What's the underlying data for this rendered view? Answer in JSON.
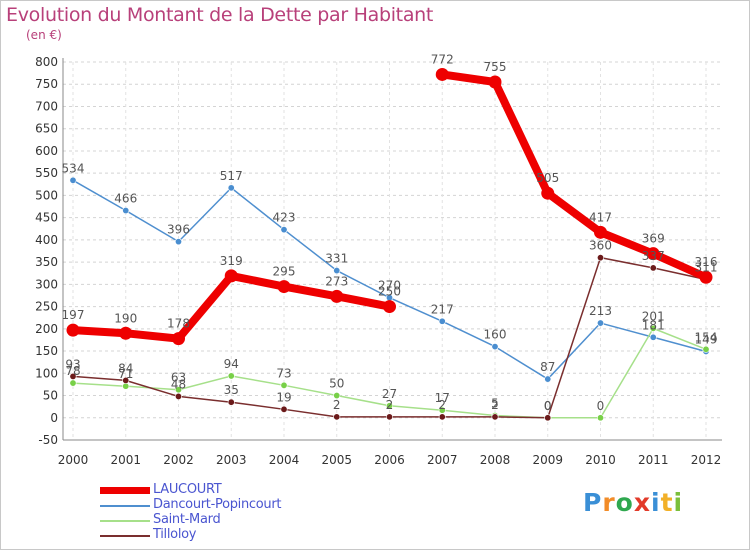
{
  "header": {
    "title": "Evolution du Montant de la Dette par Habitant",
    "subtitle": "(en €)"
  },
  "logo": {
    "text": "Proxiti",
    "letter_colors": [
      "#3a8fd6",
      "#f28c28",
      "#2fa84f",
      "#e23a2a",
      "#3a8fd6",
      "#f2b028",
      "#7bbf3a"
    ]
  },
  "chart_data": {
    "type": "line",
    "title": "Evolution du Montant de la Dette par Habitant",
    "xlabel": "",
    "ylabel": "(en €)",
    "x": [
      "2000",
      "2001",
      "2002",
      "2003",
      "2004",
      "2005",
      "2006",
      "2007",
      "2008",
      "2009",
      "2010",
      "2011",
      "2012"
    ],
    "ylim": [
      -50,
      800
    ],
    "yticks": [
      -50,
      0,
      50,
      100,
      150,
      200,
      250,
      300,
      350,
      400,
      450,
      500,
      550,
      600,
      650,
      700,
      750,
      800
    ],
    "grid": "horizontal dashed",
    "legend_position": "bottom-left",
    "series": [
      {
        "name": "Dancourt-Popincourt",
        "color": "#4f8fcf",
        "marker": "#4a8ed0",
        "values": [
          534,
          466,
          396,
          517,
          423,
          331,
          270,
          217,
          160,
          87,
          213,
          181,
          149
        ],
        "labels": [
          "534",
          "466",
          "396",
          "517",
          "423",
          "331",
          "270",
          "217",
          "160",
          "87",
          "213",
          "181",
          "149"
        ]
      },
      {
        "name": "Saint-Mard",
        "color": "#a6e08a",
        "marker": "#78d048",
        "values": [
          78,
          71,
          63,
          94,
          73,
          50,
          27,
          17,
          5,
          0,
          0,
          201,
          154
        ],
        "labels": [
          "78",
          "71",
          "63",
          "94",
          "73",
          "50",
          "27",
          "17",
          "5",
          "0",
          "0",
          "201",
          "154"
        ]
      },
      {
        "name": "Tilloloy",
        "color": "#7a2e2e",
        "marker": "#6b1a1a",
        "values": [
          93,
          84,
          48,
          35,
          19,
          2,
          2,
          2,
          2,
          0,
          360,
          337,
          311
        ],
        "labels": [
          "93",
          "84",
          "48",
          "35",
          "19",
          "2",
          "2",
          "2",
          "2",
          "0",
          "360",
          "337",
          "311"
        ]
      },
      {
        "name": "LAUCOURT",
        "color": "#ee0000",
        "marker": "#ee0000",
        "segments": [
          [
            0,
            6
          ],
          [
            7,
            12
          ]
        ],
        "values": [
          197,
          190,
          178,
          319,
          295,
          273,
          250,
          772,
          755,
          505,
          417,
          369,
          316
        ],
        "labels": [
          "197",
          "190",
          "178",
          "319",
          "295",
          "273",
          "250",
          "772",
          "755",
          "505",
          "417",
          "369",
          "316"
        ]
      }
    ],
    "legend": [
      {
        "name": "LAUCOURT",
        "color": "#ee0000"
      },
      {
        "name": "Dancourt-Popincourt",
        "color": "#4f8fcf"
      },
      {
        "name": "Saint-Mard",
        "color": "#a6e08a"
      },
      {
        "name": "Tilloloy",
        "color": "#7a2e2e"
      }
    ]
  }
}
